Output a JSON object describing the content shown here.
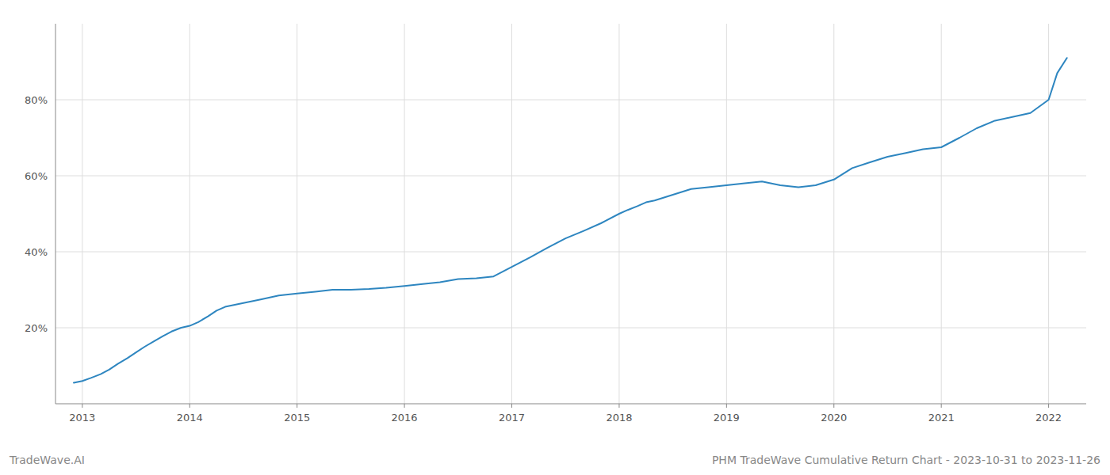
{
  "chart_data": {
    "type": "line",
    "title": "PHM TradeWave Cumulative Return Chart - 2023-10-31 to 2023-11-26",
    "annotations": [
      "TradeWave.AI"
    ],
    "color": "#2e86c0",
    "grid": true,
    "x": [
      2012.92,
      2013.0,
      2013.08,
      2013.17,
      2013.25,
      2013.33,
      2013.42,
      2013.5,
      2013.58,
      2013.67,
      2013.75,
      2013.83,
      2013.92,
      2014.0,
      2014.08,
      2014.17,
      2014.25,
      2014.33,
      2014.5,
      2014.67,
      2014.83,
      2015.0,
      2015.17,
      2015.33,
      2015.5,
      2015.67,
      2015.83,
      2016.0,
      2016.17,
      2016.33,
      2016.5,
      2016.67,
      2016.83,
      2017.0,
      2017.17,
      2017.33,
      2017.5,
      2017.67,
      2017.83,
      2018.0,
      2018.08,
      2018.17,
      2018.25,
      2018.33,
      2018.5,
      2018.67,
      2018.83,
      2019.0,
      2019.17,
      2019.33,
      2019.5,
      2019.67,
      2019.83,
      2020.0,
      2020.17,
      2020.33,
      2020.5,
      2020.67,
      2020.83,
      2021.0,
      2021.17,
      2021.33,
      2021.5,
      2021.67,
      2021.83,
      2022.0,
      2022.08,
      2022.17
    ],
    "values": [
      5.5,
      6.0,
      6.8,
      7.8,
      9.0,
      10.5,
      12.0,
      13.5,
      15.0,
      16.5,
      17.8,
      19.0,
      20.0,
      20.5,
      21.5,
      23.0,
      24.5,
      25.5,
      26.5,
      27.5,
      28.5,
      29.0,
      29.5,
      30.0,
      30.0,
      30.2,
      30.5,
      31.0,
      31.5,
      32.0,
      32.8,
      33.0,
      33.5,
      36.0,
      38.5,
      41.0,
      43.5,
      45.5,
      47.5,
      50.0,
      51.0,
      52.0,
      53.0,
      53.5,
      55.0,
      56.5,
      57.0,
      57.5,
      58.0,
      58.5,
      57.5,
      57.0,
      57.5,
      59.0,
      62.0,
      63.5,
      65.0,
      66.0,
      67.0,
      67.5,
      70.0,
      72.5,
      74.5,
      75.5,
      76.5,
      80.0,
      87.0,
      91.0
    ],
    "xlim": [
      2012.75,
      2022.35
    ],
    "ylim": [
      0,
      100
    ],
    "xticks": [
      2013,
      2014,
      2015,
      2016,
      2017,
      2018,
      2019,
      2020,
      2021,
      2022
    ],
    "yticks": [
      {
        "value": 20,
        "label": "20%"
      },
      {
        "value": 40,
        "label": "40%"
      },
      {
        "value": 60,
        "label": "60%"
      },
      {
        "value": 80,
        "label": "80%"
      }
    ]
  }
}
